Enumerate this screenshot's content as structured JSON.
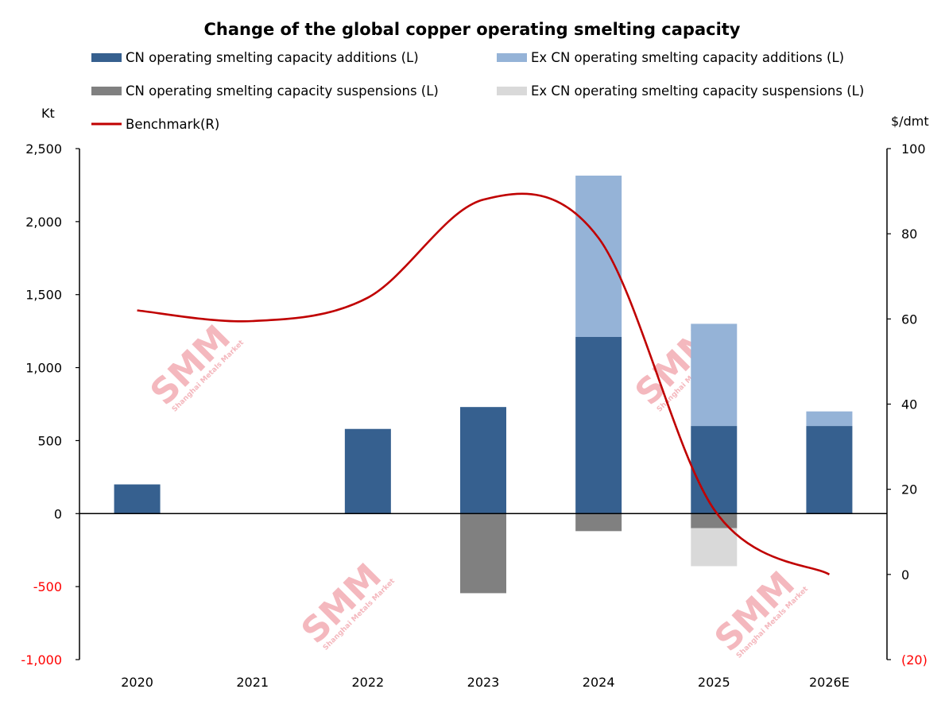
{
  "chart_data": {
    "type": "bar",
    "title": "Change of the global copper operating smelting capacity",
    "categories": [
      "2020",
      "2021",
      "2022",
      "2023",
      "2024",
      "2025",
      "2026E"
    ],
    "series": [
      {
        "name": "CN operating smelting capacity additions (L)",
        "kind": "bar",
        "axis": "left",
        "color": "#36608f",
        "values": [
          200,
          0,
          580,
          730,
          1210,
          600,
          600
        ]
      },
      {
        "name": "Ex CN operating smelting capacity additions (L)",
        "kind": "bar",
        "axis": "left",
        "color": "#95b3d7",
        "values": [
          0,
          0,
          0,
          0,
          1105,
          700,
          100
        ]
      },
      {
        "name": "CN operating smelting capacity suspensions (L)",
        "kind": "bar",
        "axis": "left",
        "color": "#808080",
        "values": [
          0,
          0,
          0,
          -545,
          -120,
          -100,
          0
        ]
      },
      {
        "name": "Ex CN operating smelting capacity suspensions (L)",
        "kind": "bar",
        "axis": "left",
        "color": "#d9d9d9",
        "values": [
          0,
          0,
          0,
          0,
          0,
          -260,
          0
        ]
      },
      {
        "name": "Benchmark(R)",
        "kind": "line",
        "axis": "right",
        "color": "#c00000",
        "values": [
          62,
          59.5,
          65,
          88,
          79,
          15.3,
          0
        ]
      }
    ],
    "left_axis": {
      "label": "Kt",
      "range": [
        -1000,
        2500
      ],
      "ticks": [
        {
          "v": 2500,
          "t": "2,500"
        },
        {
          "v": 2000,
          "t": "2,000"
        },
        {
          "v": 1500,
          "t": "1,500"
        },
        {
          "v": 1000,
          "t": "1,000"
        },
        {
          "v": 500,
          "t": "500"
        },
        {
          "v": 0,
          "t": "0"
        },
        {
          "v": -500,
          "t": "-500"
        },
        {
          "v": -1000,
          "t": "-1,000"
        }
      ]
    },
    "right_axis": {
      "label": "$/dmt",
      "range": [
        -20,
        100
      ],
      "ticks": [
        {
          "v": 100,
          "t": "100"
        },
        {
          "v": 80,
          "t": "80"
        },
        {
          "v": 60,
          "t": "60"
        },
        {
          "v": 40,
          "t": "40"
        },
        {
          "v": 20,
          "t": "20"
        },
        {
          "v": 0,
          "t": "0"
        },
        {
          "v": -20,
          "t": "(20)"
        }
      ]
    },
    "negative_tick_color": "#ff0000",
    "legend_position": "top",
    "stacked": true,
    "grid": false,
    "watermark": {
      "text": "SMM",
      "subtext": "Shanghai Metals Market"
    }
  }
}
